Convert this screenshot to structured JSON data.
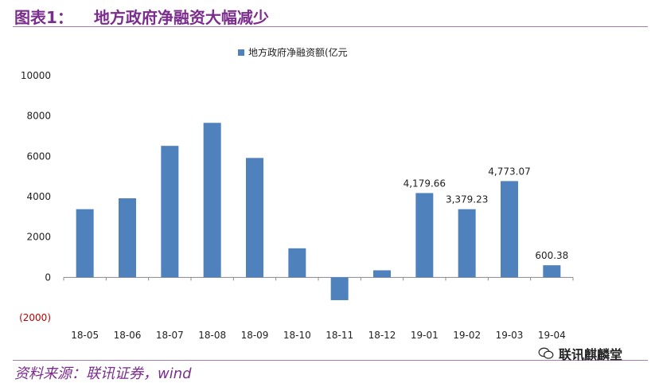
{
  "header": {
    "label": "图表1：",
    "title": "地方政府净融资大幅减少"
  },
  "chart_data": {
    "type": "bar",
    "legend": "地方政府净融资额(亿元",
    "legend_position": "top",
    "categories": [
      "18-05",
      "18-06",
      "18-07",
      "18-08",
      "18-09",
      "18-10",
      "18-11",
      "18-12",
      "19-01",
      "19-02",
      "19-03",
      "19-04"
    ],
    "series": [
      {
        "name": "地方政府净融资额(亿元",
        "values": [
          3380,
          3920,
          6520,
          7660,
          5920,
          1440,
          -1130,
          350,
          4179.66,
          3379.23,
          4773.07,
          600.38
        ]
      }
    ],
    "data_labels": [
      "",
      "",
      "",
      "",
      "",
      "",
      "",
      "",
      "4,179.66",
      "3,379.23",
      "4,773.07",
      "600.38"
    ],
    "yticks": [
      "10000",
      "8000",
      "6000",
      "4000",
      "2000",
      "0",
      "(2000)"
    ],
    "ylim": [
      -2000,
      10000
    ],
    "bar_color": "#4f81bd",
    "negative_tick_color": "#c00000"
  },
  "source": "资料来源：联讯证券，wind",
  "watermark": "联讯麒麟堂"
}
